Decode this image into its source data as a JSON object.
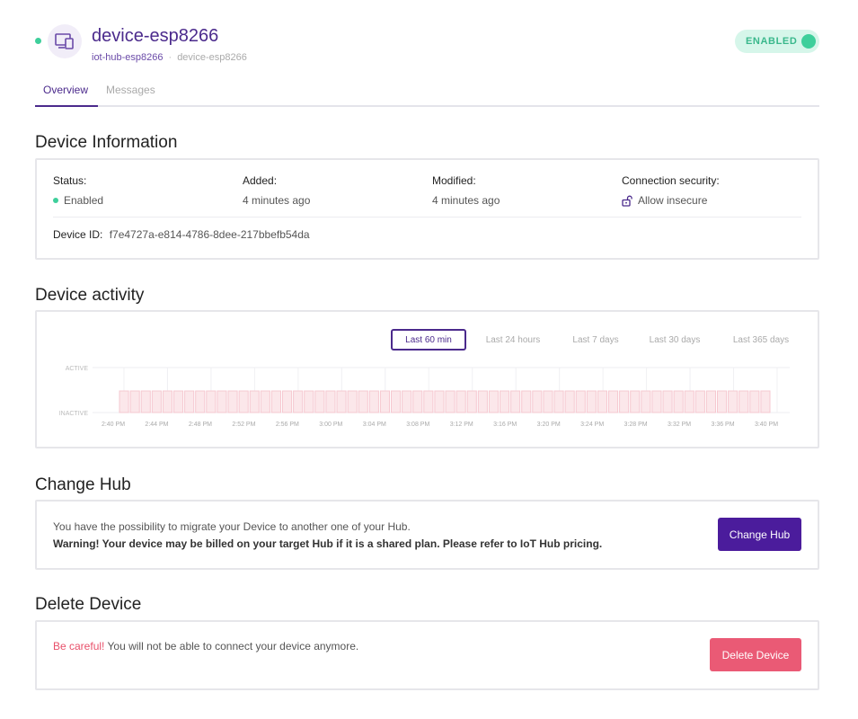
{
  "header": {
    "title": "device-esp8266",
    "breadcrumb": [
      "iot-hub-esp8266",
      "device-esp8266"
    ],
    "toggle_label": "ENABLED",
    "status_color": "#3ecf9b",
    "accent_color": "#4b2a8c"
  },
  "tabs": [
    {
      "label": "Overview",
      "active": true
    },
    {
      "label": "Messages",
      "active": false
    }
  ],
  "device_info": {
    "title": "Device Information",
    "status": {
      "label": "Status:",
      "value": "Enabled"
    },
    "added": {
      "label": "Added:",
      "value": "4 minutes ago"
    },
    "modified": {
      "label": "Modified:",
      "value": "4 minutes ago"
    },
    "security": {
      "label": "Connection security:",
      "value": "Allow insecure",
      "icon": "unlock-icon"
    },
    "device_id": {
      "label": "Device ID:",
      "value": "f7e4727a-e814-4786-8dee-217bbefb54da"
    }
  },
  "activity": {
    "title": "Device activity",
    "ranges": [
      "Last 60 min",
      "Last 24 hours",
      "Last 7 days",
      "Last 30 days",
      "Last 365 days"
    ],
    "selected_range": "Last 60 min"
  },
  "chart_data": {
    "type": "bar",
    "states": [
      "ACTIVE",
      "INACTIVE"
    ],
    "x_ticks": [
      "2:40 PM",
      "2:44 PM",
      "2:48 PM",
      "2:52 PM",
      "2:56 PM",
      "3:00 PM",
      "3:04 PM",
      "3:08 PM",
      "3:12 PM",
      "3:16 PM",
      "3:20 PM",
      "3:24 PM",
      "3:28 PM",
      "3:32 PM",
      "3:36 PM",
      "3:40 PM"
    ],
    "minutes": 60,
    "values": [
      0,
      0,
      0,
      0,
      0,
      0,
      0,
      0,
      0,
      0,
      0,
      0,
      0,
      0,
      0,
      0,
      0,
      0,
      0,
      0,
      0,
      0,
      0,
      0,
      0,
      0,
      0,
      0,
      0,
      0,
      0,
      0,
      0,
      0,
      0,
      0,
      0,
      0,
      0,
      0,
      0,
      0,
      0,
      0,
      0,
      0,
      0,
      0,
      0,
      0,
      0,
      0,
      0,
      0,
      0,
      0,
      0,
      0,
      0,
      0
    ],
    "bar_color": "#f6c8d0",
    "bar_fill": "#fbe7ea",
    "grid": true
  },
  "change_hub": {
    "title": "Change Hub",
    "text": "You have the possibility to migrate your Device to another one of your Hub.",
    "warning": "Warning! Your device may be billed on your target Hub if it is a shared plan. Please refer to IoT Hub pricing.",
    "button": "Change Hub"
  },
  "delete_device": {
    "title": "Delete Device",
    "warn": "Be careful!",
    "text": " You will not be able to connect your device anymore.",
    "button": "Delete Device"
  }
}
